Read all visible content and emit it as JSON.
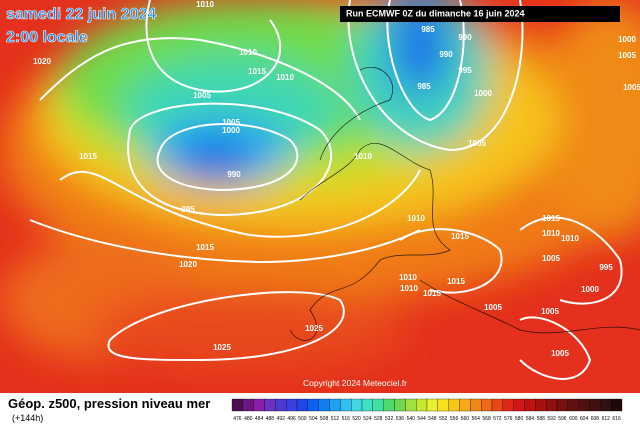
{
  "header": {
    "date": "samedi 22 juin 2024",
    "time": "2:00 locale",
    "run": "Run ECMWF 0Z du dimanche 16 juin 2024"
  },
  "map": {
    "isobar_labels": [
      "1010",
      "1020",
      "1015",
      "1010",
      "1015",
      "1010",
      "1005",
      "1005",
      "1000",
      "990",
      "995",
      "1015",
      "1020",
      "1025",
      "1025",
      "985",
      "990",
      "990",
      "995",
      "985",
      "1000",
      "1005",
      "1010",
      "1010",
      "1015",
      "1015",
      "1010",
      "1010",
      "1005",
      "995",
      "1000",
      "1010",
      "1010",
      "1015",
      "1015",
      "1005",
      "1005",
      "1005",
      "1000",
      "1005",
      "1005"
    ],
    "copyright": "Copyright 2024 Meteociel.fr"
  },
  "footer": {
    "title": "Géop. z500, pression niveau mer",
    "lead": "(+144h)",
    "scale": [
      "476",
      "480",
      "484",
      "488",
      "492",
      "496",
      "500",
      "504",
      "508",
      "512",
      "516",
      "520",
      "524",
      "528",
      "532",
      "536",
      "540",
      "544",
      "548",
      "552",
      "556",
      "560",
      "564",
      "568",
      "572",
      "576",
      "580",
      "584",
      "588",
      "592",
      "596",
      "600",
      "604",
      "608",
      "612",
      "616"
    ]
  }
}
